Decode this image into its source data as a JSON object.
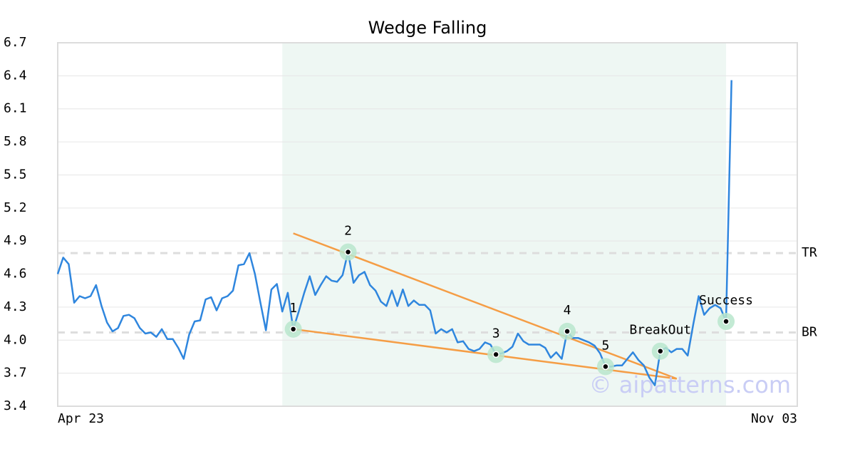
{
  "chart_data": {
    "type": "line",
    "title": "Wedge Falling",
    "watermark": "© aipatterns.com",
    "color": "#2f86de",
    "categories": [
      "Apr 23",
      null,
      null,
      null,
      null,
      null,
      null,
      null,
      null,
      null,
      null,
      null,
      null,
      null,
      null,
      null,
      null,
      null,
      null,
      null,
      null,
      null,
      null,
      null,
      null,
      null,
      null,
      null,
      null,
      null,
      null,
      null,
      null,
      null,
      null,
      null,
      null,
      null,
      null,
      null,
      null,
      null,
      null,
      null,
      null,
      null,
      null,
      null,
      null,
      null,
      null,
      null,
      null,
      null,
      null,
      null,
      null,
      null,
      null,
      null,
      null,
      null,
      null,
      null,
      null,
      null,
      null,
      null,
      null,
      null,
      null,
      null,
      null,
      null,
      null,
      null,
      null,
      null,
      null,
      null,
      null,
      null,
      null,
      null,
      null,
      null,
      null,
      null,
      null,
      null,
      null,
      null,
      null,
      null,
      null,
      null,
      null,
      null,
      null,
      null,
      null,
      null,
      null,
      null,
      null,
      null,
      null,
      null,
      null,
      null,
      null,
      null,
      null,
      null,
      null,
      null,
      null,
      null,
      null,
      null,
      null,
      null,
      null,
      null,
      null,
      null,
      null,
      null,
      null,
      null,
      null,
      null,
      null,
      null,
      null,
      "Nov 03"
    ],
    "values": [
      4.6,
      4.75,
      4.69,
      4.34,
      4.4,
      4.38,
      4.4,
      4.5,
      4.31,
      4.16,
      4.08,
      4.11,
      4.22,
      4.23,
      4.2,
      4.11,
      4.06,
      4.07,
      4.03,
      4.1,
      4.01,
      4.01,
      3.93,
      3.83,
      4.05,
      4.17,
      4.18,
      4.37,
      4.39,
      4.27,
      4.38,
      4.4,
      4.45,
      4.68,
      4.69,
      4.79,
      4.6,
      4.34,
      4.09,
      4.46,
      4.51,
      4.26,
      4.43,
      4.1,
      4.26,
      4.43,
      4.58,
      4.41,
      4.5,
      4.58,
      4.54,
      4.53,
      4.59,
      4.8,
      4.52,
      4.59,
      4.62,
      4.5,
      4.45,
      4.35,
      4.31,
      4.45,
      4.31,
      4.46,
      4.31,
      4.36,
      4.32,
      4.32,
      4.27,
      4.06,
      4.1,
      4.07,
      4.1,
      3.98,
      3.99,
      3.92,
      3.9,
      3.92,
      3.98,
      3.96,
      3.87,
      3.88,
      3.9,
      3.94,
      4.06,
      3.99,
      3.96,
      3.96,
      3.96,
      3.93,
      3.84,
      3.89,
      3.83,
      4.08,
      4.02,
      4.02,
      4.0,
      3.98,
      3.95,
      3.88,
      3.76,
      3.76,
      3.77,
      3.77,
      3.83,
      3.89,
      3.82,
      3.77,
      3.66,
      3.59,
      3.9,
      3.93,
      3.89,
      3.92,
      3.92,
      3.86,
      4.14,
      4.4,
      4.23,
      4.29,
      4.32,
      4.29,
      4.17,
      6.36,
      null,
      null,
      null,
      null,
      null,
      null,
      null,
      null,
      null,
      null,
      null,
      null
    ],
    "ylim": [
      3.4,
      6.7
    ],
    "yticks": [
      3.4,
      3.7,
      {
        "value": 4.0,
        "label": "4.0"
      },
      4.3,
      4.6,
      4.9,
      5.2,
      5.5,
      5.8,
      6.1,
      6.4,
      6.7
    ],
    "grid": true,
    "highlight_range": [
      41,
      122
    ],
    "highlight_color": "#eef7f3",
    "levels": [
      {
        "name": "TR",
        "value": 4.79
      },
      {
        "name": "BR",
        "value": 4.07
      }
    ],
    "trendlines": [
      {
        "x": [
          43,
          113
        ],
        "y": [
          4.97,
          3.65
        ],
        "color": "#f59d45"
      },
      {
        "x": [
          43,
          113
        ],
        "y": [
          4.1,
          3.65
        ],
        "color": "#f59d45"
      }
    ],
    "pattern_points": [
      {
        "index": 43,
        "label": "1"
      },
      {
        "index": 53,
        "label": "2"
      },
      {
        "index": 80,
        "label": "3"
      },
      {
        "index": 93,
        "label": "4"
      },
      {
        "index": 100,
        "label": "5"
      },
      {
        "index": 110,
        "label": "BreakOut"
      },
      {
        "index": 122,
        "label": "Success"
      }
    ]
  }
}
